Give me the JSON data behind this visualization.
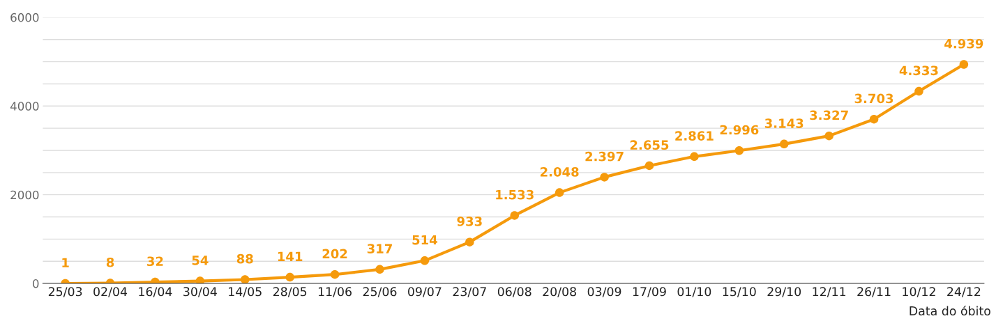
{
  "chart_data": {
    "type": "line",
    "xlabel": "Data do óbito",
    "categories": [
      "25/03",
      "02/04",
      "16/04",
      "30/04",
      "14/05",
      "28/05",
      "11/06",
      "25/06",
      "09/07",
      "23/07",
      "06/08",
      "20/08",
      "03/09",
      "17/09",
      "01/10",
      "15/10",
      "29/10",
      "12/11",
      "26/11",
      "10/12",
      "24/12"
    ],
    "values": [
      1,
      8,
      32,
      54,
      88,
      141,
      202,
      317,
      514,
      933,
      1533,
      2048,
      2397,
      2655,
      2861,
      2996,
      3143,
      3327,
      3703,
      4333,
      4939
    ],
    "value_labels": [
      "1",
      "8",
      "32",
      "54",
      "88",
      "141",
      "202",
      "317",
      "514",
      "933",
      "1.533",
      "2.048",
      "2.397",
      "2.655",
      "2.861",
      "2.996",
      "3.143",
      "3.327",
      "3.703",
      "4.333",
      "4.939"
    ],
    "color": "#f59a0c",
    "marker": "circle",
    "line_style": "solid",
    "grid": "y",
    "legend": false,
    "ylim": [
      0,
      6000
    ],
    "yticks": [
      0,
      {
        "value": 500,
        "label": null
      },
      {
        "value": 1000,
        "label": null
      },
      {
        "value": 1500,
        "label": null
      },
      2000,
      {
        "value": 2500,
        "label": null
      },
      {
        "value": 3000,
        "label": null
      },
      {
        "value": 3500,
        "label": null
      },
      4000,
      {
        "value": 4500,
        "label": null
      },
      {
        "value": 5000,
        "label": null
      },
      {
        "value": 5500,
        "label": null
      },
      6000
    ]
  }
}
